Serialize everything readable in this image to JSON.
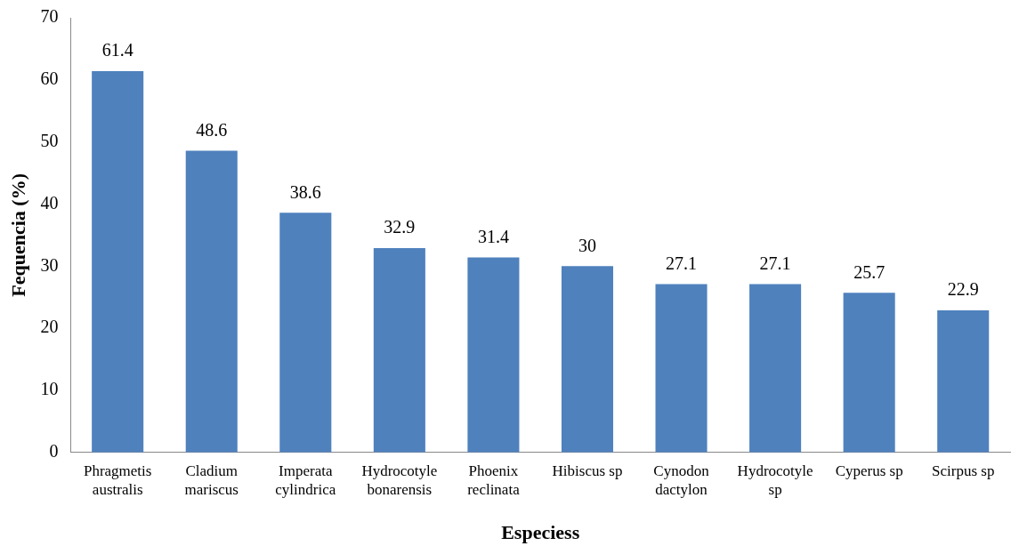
{
  "chart_data": {
    "type": "bar",
    "xlabel": "Especiess",
    "ylabel": "Fequencia (%)",
    "categories": [
      "Phragmetis\naustralis",
      "Cladium\nmariscus",
      "Imperata\ncylindrica",
      "Hydrocotyle\nbonarensis",
      "Phoenix\nreclinata",
      "Hibiscus sp",
      "Cynodon\ndactylon",
      "Hydrocotyle\nsp",
      "Cyperus sp",
      "Scirpus sp"
    ],
    "values": [
      61.4,
      48.6,
      38.6,
      32.9,
      31.4,
      30,
      27.1,
      27.1,
      25.7,
      22.9
    ],
    "color": "#4f81bd",
    "ylim": [
      0,
      70
    ],
    "yticks": [
      0,
      10,
      20,
      30,
      40,
      50,
      60,
      70
    ],
    "grid": false,
    "legend": false,
    "data_labels": true
  }
}
